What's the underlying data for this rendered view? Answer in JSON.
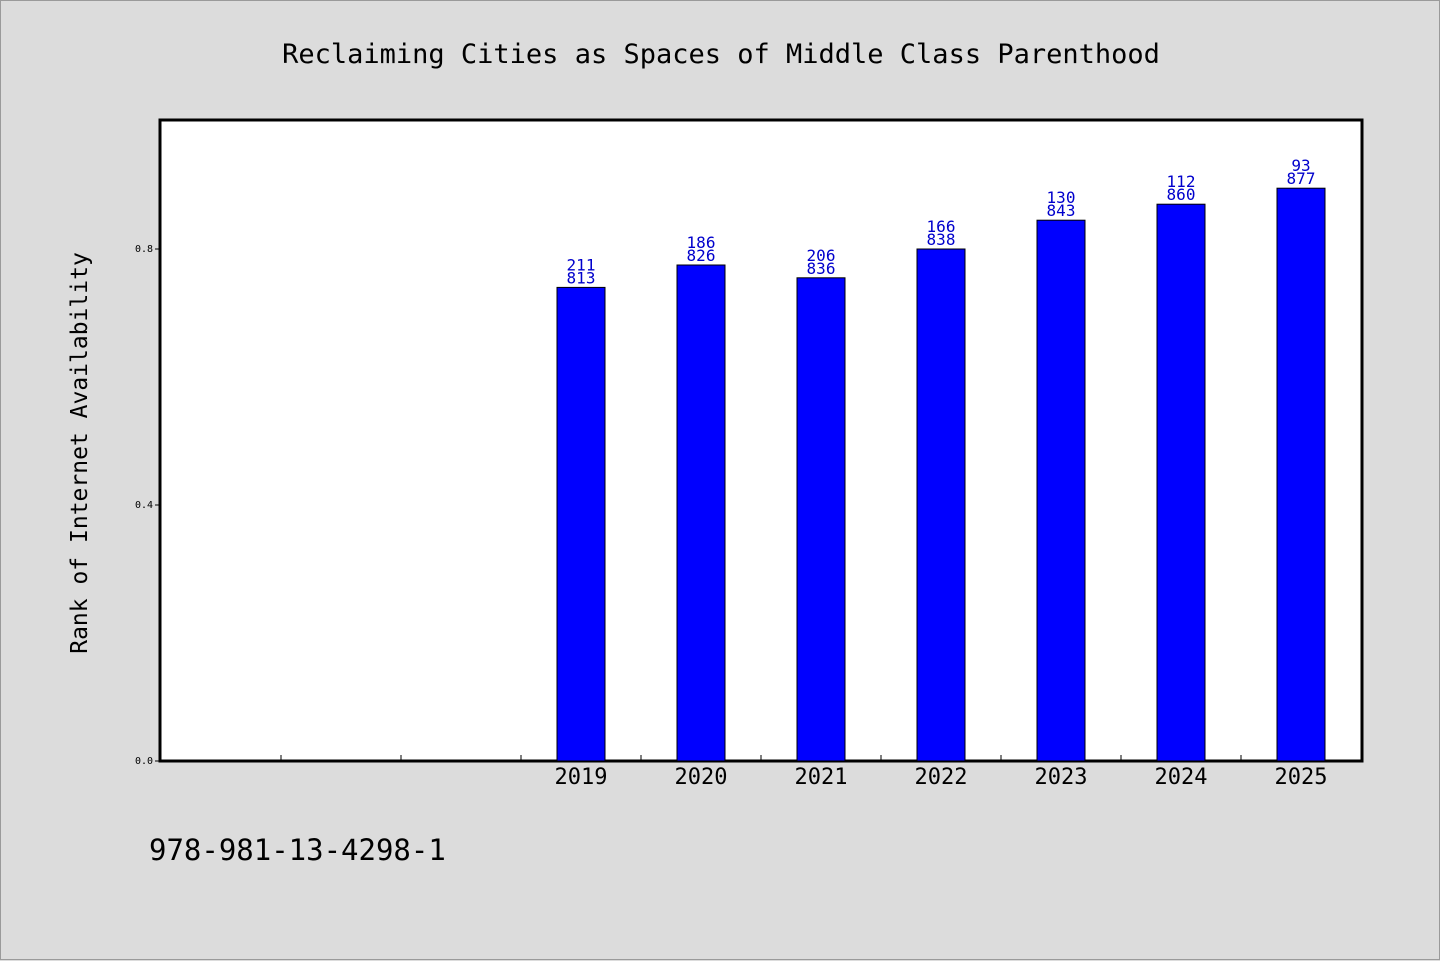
{
  "chart_data": {
    "type": "bar",
    "title": "Reclaiming Cities as Spaces of Middle Class Parenthood",
    "xlabel": "",
    "ylabel": "Rank of Internet Availability",
    "categories": [
      "2019",
      "2020",
      "2021",
      "2022",
      "2023",
      "2024",
      "2025"
    ],
    "values": [
      0.74,
      0.775,
      0.755,
      0.8,
      0.845,
      0.87,
      0.895
    ],
    "bar_labels": [
      [
        "211",
        "813"
      ],
      [
        "186",
        "826"
      ],
      [
        "206",
        "836"
      ],
      [
        "166",
        "838"
      ],
      [
        "130",
        "843"
      ],
      [
        "112",
        "860"
      ],
      [
        "93",
        "877"
      ]
    ],
    "ylim": [
      0,
      1.0
    ],
    "yticks": [
      0.0,
      0.4,
      0.8
    ],
    "ytick_labels": [
      "0.0",
      "0.4",
      "0.8"
    ],
    "x_empty_slots_before": 3,
    "grid": false,
    "colors": {
      "bar": "#0000ff",
      "bar_label": "#0000cc",
      "background": "#dcdcdc",
      "plot_area": "#ffffff"
    }
  },
  "footer": {
    "code": "978-981-13-4298-1"
  }
}
